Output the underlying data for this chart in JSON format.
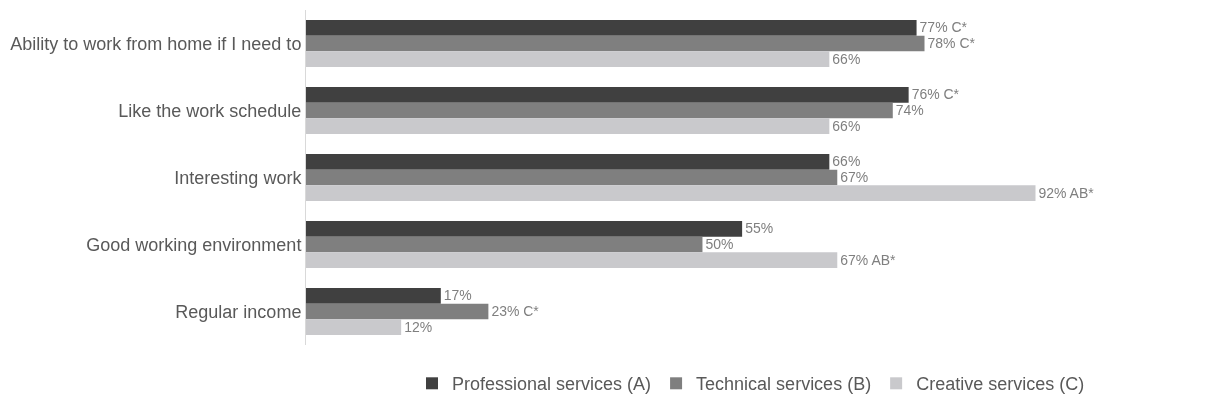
{
  "chart_data": {
    "type": "bar",
    "orientation": "horizontal",
    "categories": [
      "Ability to work from home if I need to",
      "Like the work schedule",
      "Interesting work",
      "Good working environment",
      "Regular income"
    ],
    "series": [
      {
        "name": "Professional services (A)",
        "color": "#404040",
        "values": [
          77,
          76,
          66,
          55,
          17
        ],
        "value_labels": [
          "77% C*",
          "76% C*",
          "66%",
          "55%",
          "17%"
        ]
      },
      {
        "name": "Technical services (B)",
        "color": "#7f7f7f",
        "values": [
          78,
          74,
          67,
          50,
          23
        ],
        "value_labels": [
          "78% C*",
          "74%",
          "67%",
          "50%",
          "23% C*"
        ]
      },
      {
        "name": "Creative services (C)",
        "color": "#c9c9cc",
        "values": [
          66,
          66,
          92,
          67,
          12
        ],
        "value_labels": [
          "66%",
          "66%",
          "92% AB*",
          "67% AB*",
          "12%"
        ]
      }
    ],
    "legend": "bottom"
  }
}
